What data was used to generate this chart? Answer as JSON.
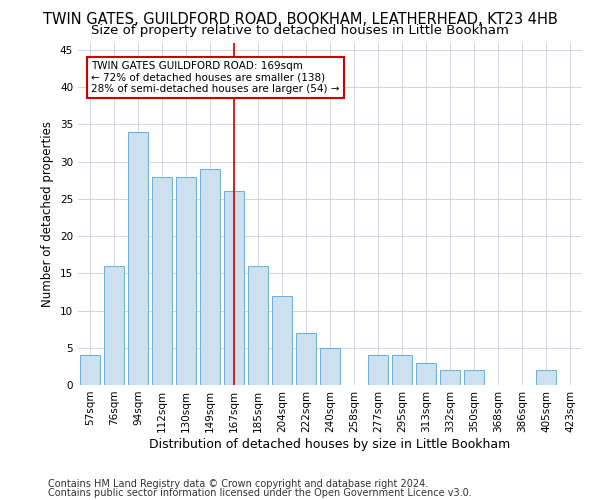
{
  "title1": "TWIN GATES, GUILDFORD ROAD, BOOKHAM, LEATHERHEAD, KT23 4HB",
  "title2": "Size of property relative to detached houses in Little Bookham",
  "xlabel": "Distribution of detached houses by size in Little Bookham",
  "ylabel": "Number of detached properties",
  "bar_labels": [
    "57sqm",
    "76sqm",
    "94sqm",
    "112sqm",
    "130sqm",
    "149sqm",
    "167sqm",
    "185sqm",
    "204sqm",
    "222sqm",
    "240sqm",
    "258sqm",
    "277sqm",
    "295sqm",
    "313sqm",
    "332sqm",
    "350sqm",
    "368sqm",
    "386sqm",
    "405sqm",
    "423sqm"
  ],
  "bar_values": [
    4,
    16,
    34,
    28,
    28,
    29,
    26,
    16,
    12,
    7,
    5,
    0,
    4,
    4,
    3,
    2,
    2,
    0,
    0,
    2,
    0
  ],
  "bar_color": "#cce0f0",
  "bar_edgecolor": "#6aaed6",
  "vline_index": 6,
  "vline_color": "#cc0000",
  "annotation_text": "TWIN GATES GUILDFORD ROAD: 169sqm\n← 72% of detached houses are smaller (138)\n28% of semi-detached houses are larger (54) →",
  "annotation_box_facecolor": "#ffffff",
  "annotation_box_edgecolor": "#cc0000",
  "ylim": [
    0,
    46
  ],
  "yticks": [
    0,
    5,
    10,
    15,
    20,
    25,
    30,
    35,
    40,
    45
  ],
  "footer1": "Contains HM Land Registry data © Crown copyright and database right 2024.",
  "footer2": "Contains public sector information licensed under the Open Government Licence v3.0.",
  "bg_color": "#ffffff",
  "plot_bg_color": "#ffffff",
  "grid_color": "#ccccdd",
  "title1_fontsize": 10.5,
  "title2_fontsize": 9.5,
  "xlabel_fontsize": 9,
  "ylabel_fontsize": 8.5,
  "tick_fontsize": 7.5,
  "footer_fontsize": 7
}
